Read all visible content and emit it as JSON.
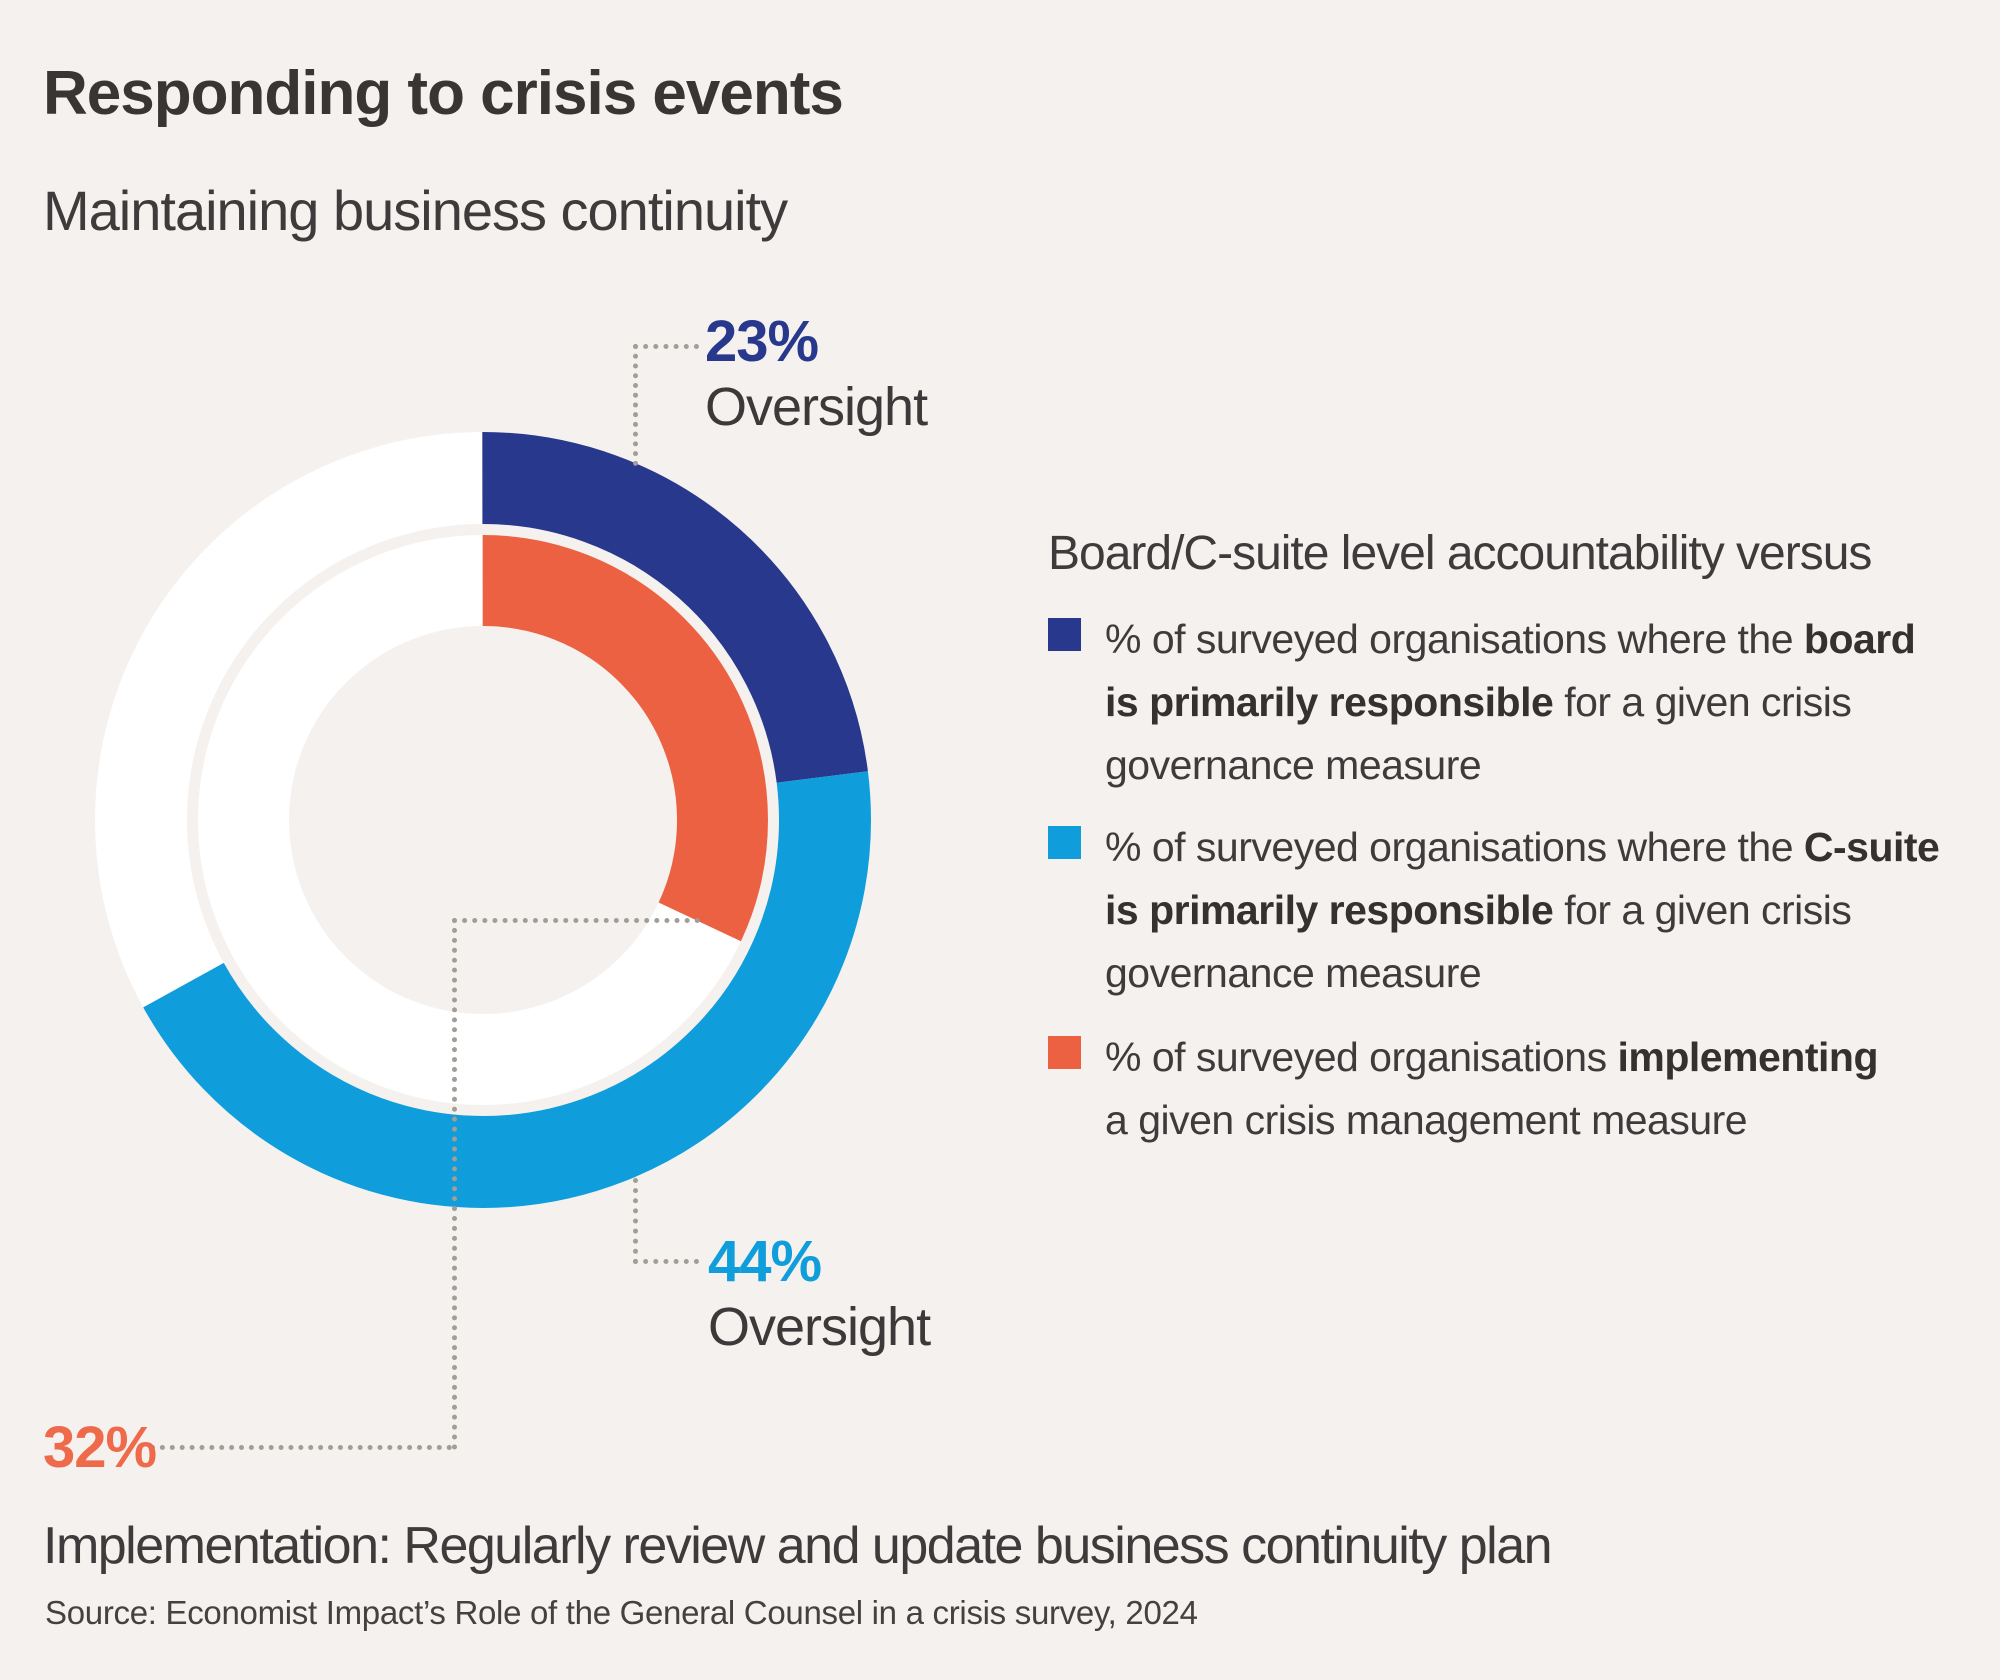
{
  "page": {
    "background": "#F5F1EE"
  },
  "header": {
    "title": "Responding to crisis events",
    "subtitle": "Maintaining business continuity"
  },
  "chart_data": {
    "type": "donut",
    "title": "Maintaining business continuity",
    "description": "Two concentric donut rings starting at 12 o'clock, clockwise",
    "rings": [
      {
        "name": "outer-ring",
        "track": "#FFFFFF",
        "series": [
          {
            "label": "Board is primarily responsible (Oversight)",
            "value": 23,
            "color": "#28388C"
          },
          {
            "label": "C-suite is primarily responsible (Oversight)",
            "value": 44,
            "color": "#0F9DDB"
          },
          {
            "label": "remainder",
            "value": 33,
            "color": "#FFFFFF"
          }
        ]
      },
      {
        "name": "inner-ring",
        "track": "#FFFFFF",
        "series": [
          {
            "label": "Implementing the measure",
            "value": 32,
            "color": "#ED6143"
          },
          {
            "label": "remainder",
            "value": 68,
            "color": "#FFFFFF"
          }
        ]
      }
    ],
    "callouts": [
      {
        "value": "23%",
        "label": "Oversight",
        "color": "#28388C"
      },
      {
        "value": "44%",
        "label": "Oversight",
        "color": "#0F9DDB"
      },
      {
        "value": "32%",
        "label": "Implementation",
        "color": "#EF6A4B"
      }
    ]
  },
  "callouts": {
    "board": {
      "value": "23%",
      "label": "Oversight"
    },
    "csuite": {
      "value": "44%",
      "label": "Oversight"
    },
    "impl": {
      "value": "32%"
    }
  },
  "implementation_caption": "Implementation: Regularly review and update business continuity plan",
  "legend": {
    "heading": "Board/C-suite level accountability versus",
    "items": [
      {
        "color": "#28388C",
        "lines": [
          [
            {
              "t": "% of surveyed organisations where the ",
              "b": false
            },
            {
              "t": "board",
              "b": true
            }
          ],
          [
            {
              "t": "is primarily responsible",
              "b": true
            },
            {
              "t": " for a given crisis",
              "b": false
            }
          ],
          [
            {
              "t": "governance measure",
              "b": false
            }
          ]
        ]
      },
      {
        "color": "#0F9DDB",
        "lines": [
          [
            {
              "t": "% of surveyed organisations where the ",
              "b": false
            },
            {
              "t": "C-suite",
              "b": true
            }
          ],
          [
            {
              "t": "is primarily responsible",
              "b": true
            },
            {
              "t": " for a given crisis",
              "b": false
            }
          ],
          [
            {
              "t": "governance measure",
              "b": false
            }
          ]
        ]
      },
      {
        "color": "#ED6143",
        "lines": [
          [
            {
              "t": "% of surveyed organisations ",
              "b": false
            },
            {
              "t": "implementing",
              "b": true
            }
          ],
          [
            {
              "t": "a given crisis management measure",
              "b": false
            }
          ]
        ]
      }
    ]
  },
  "footer": {
    "source": "Source: Economist Impact’s Role of the General Counsel in a crisis survey, 2024"
  }
}
